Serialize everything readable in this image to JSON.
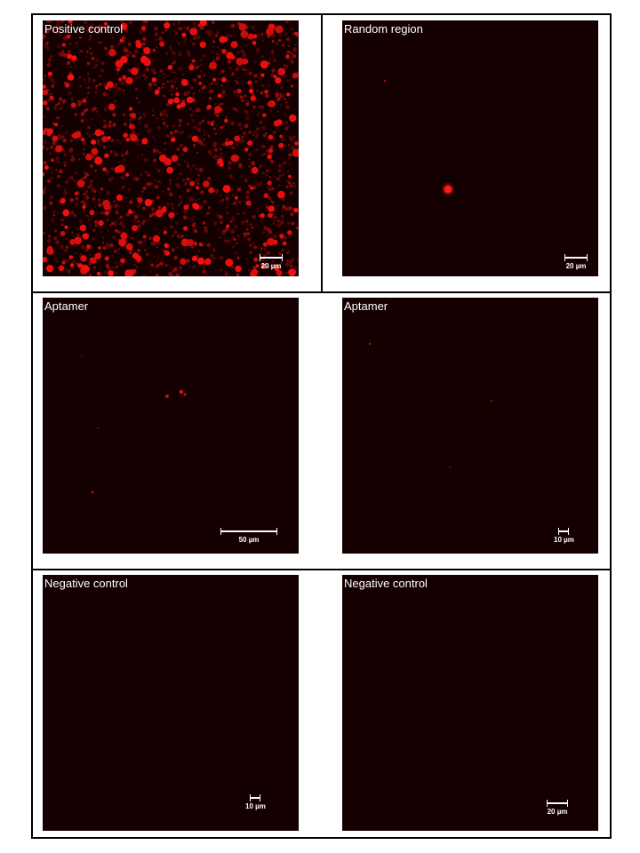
{
  "panels": [
    {
      "label": "Positive control",
      "scale": "20 µm"
    },
    {
      "label": "Random region",
      "scale": "20 µm"
    },
    {
      "label": "Aptamer",
      "scale": "50 µm"
    },
    {
      "label": "Aptamer",
      "scale": "10 µm"
    },
    {
      "label": "Negative control",
      "scale": "10 µm"
    },
    {
      "label": "Negative control",
      "scale": "20 µm"
    }
  ],
  "colors": {
    "background": "#140000",
    "signal": "#ff1a1a",
    "frame": "#000000"
  }
}
